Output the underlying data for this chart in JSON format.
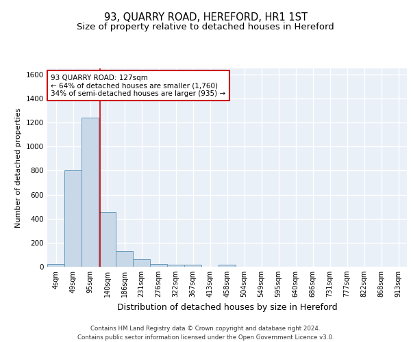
{
  "title": "93, QUARRY ROAD, HEREFORD, HR1 1ST",
  "subtitle": "Size of property relative to detached houses in Hereford",
  "xlabel": "Distribution of detached houses by size in Hereford",
  "ylabel": "Number of detached properties",
  "bin_labels": [
    "4sqm",
    "49sqm",
    "95sqm",
    "140sqm",
    "186sqm",
    "231sqm",
    "276sqm",
    "322sqm",
    "367sqm",
    "413sqm",
    "458sqm",
    "504sqm",
    "549sqm",
    "595sqm",
    "640sqm",
    "686sqm",
    "731sqm",
    "777sqm",
    "822sqm",
    "868sqm",
    "913sqm"
  ],
  "bar_heights": [
    25,
    805,
    1240,
    455,
    130,
    60,
    25,
    15,
    15,
    0,
    15,
    0,
    0,
    0,
    0,
    0,
    0,
    0,
    0,
    0,
    0
  ],
  "bar_color": "#c8d8e8",
  "bar_edgecolor": "#6699bb",
  "red_line_x": 2.58,
  "annotation_text": "93 QUARRY ROAD: 127sqm\n← 64% of detached houses are smaller (1,760)\n34% of semi-detached houses are larger (935) →",
  "annotation_box_color": "#ffffff",
  "annotation_box_edgecolor": "#cc0000",
  "ylim": [
    0,
    1650
  ],
  "yticks": [
    0,
    200,
    400,
    600,
    800,
    1000,
    1200,
    1400,
    1600
  ],
  "background_color": "#eaf0f8",
  "grid_color": "#ffffff",
  "footer_text": "Contains HM Land Registry data © Crown copyright and database right 2024.\nContains public sector information licensed under the Open Government Licence v3.0.",
  "title_fontsize": 10.5,
  "subtitle_fontsize": 9.5,
  "annotation_fontsize": 7.5,
  "ylabel_fontsize": 8,
  "xlabel_fontsize": 9,
  "tick_fontsize": 7
}
